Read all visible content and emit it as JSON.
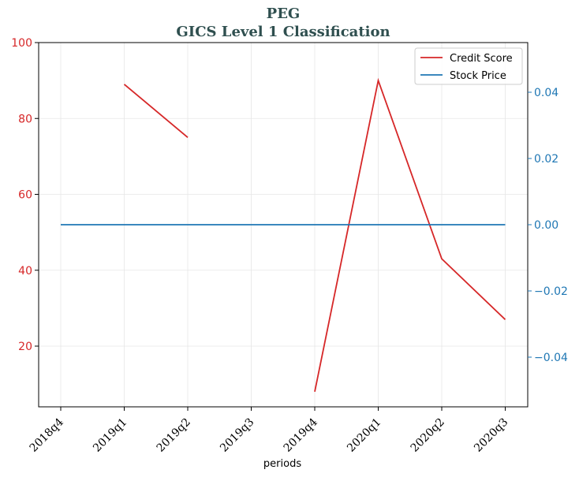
{
  "chart_data": {
    "type": "line",
    "title": "PEG",
    "subtitle": "GICS Level 1 Classification",
    "xlabel": "periods",
    "categories": [
      "2018q4",
      "2019q1",
      "2019q2",
      "2019q3",
      "2019q4",
      "2020q1",
      "2020q2",
      "2020q3"
    ],
    "series": [
      {
        "name": "Credit Score",
        "axis": "left",
        "color": "#d62728",
        "values": [
          null,
          89,
          75,
          null,
          8,
          90,
          43,
          27
        ]
      },
      {
        "name": "Stock Price",
        "axis": "right",
        "color": "#1f77b4",
        "values": [
          0,
          0,
          0,
          0,
          0,
          0,
          0,
          0
        ]
      }
    ],
    "left_axis": {
      "ylim": [
        4,
        100
      ],
      "ticks": [
        20,
        40,
        60,
        80,
        100
      ],
      "tick_labels": [
        "20",
        "40",
        "60",
        "80",
        "100"
      ],
      "color": "#d62728"
    },
    "right_axis": {
      "ylim": [
        -0.055,
        0.055
      ],
      "ticks": [
        -0.04,
        -0.02,
        0.0,
        0.02,
        0.04
      ],
      "tick_labels": [
        "−0.04",
        "−0.02",
        "0.00",
        "0.02",
        "0.04"
      ],
      "color": "#1f77b4"
    },
    "grid": true,
    "legend": "top-right"
  }
}
